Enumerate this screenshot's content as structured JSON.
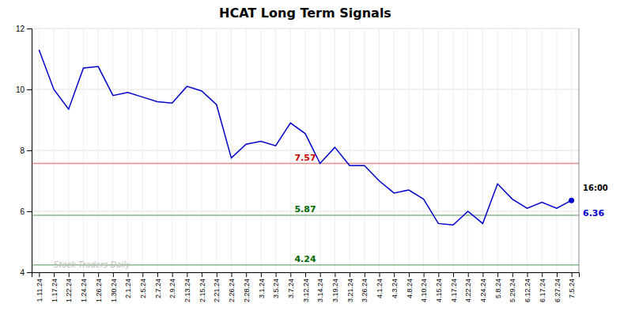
{
  "chart_data": {
    "type": "line",
    "title": "HCAT Long Term Signals",
    "categories": [
      "1.11.24",
      "1.17.24",
      "1.22.24",
      "1.24.24",
      "1.26.24",
      "1.30.24",
      "2.1.24",
      "2.5.24",
      "2.7.24",
      "2.9.24",
      "2.13.24",
      "2.15.24",
      "2.21.24",
      "2.26.24",
      "2.28.24",
      "3.1.24",
      "3.5.24",
      "3.7.24",
      "3.12.24",
      "3.14.24",
      "3.19.24",
      "3.21.24",
      "3.26.24",
      "4.1.24",
      "4.3.24",
      "4.8.24",
      "4.10.24",
      "4.15.24",
      "4.17.24",
      "4.22.24",
      "4.24.24",
      "5.8.24",
      "5.29.24",
      "6.12.24",
      "6.17.24",
      "6.27.24",
      "7.5.24"
    ],
    "values": [
      11.3,
      10.0,
      9.35,
      10.7,
      10.75,
      9.8,
      9.9,
      9.75,
      9.6,
      9.55,
      10.1,
      9.95,
      9.5,
      7.75,
      8.2,
      8.3,
      8.15,
      8.9,
      8.55,
      7.57,
      8.1,
      7.5,
      7.5,
      7.0,
      6.6,
      6.7,
      6.4,
      5.6,
      5.55,
      6.0,
      5.6,
      6.9,
      6.4,
      6.1,
      6.3,
      6.1,
      6.36
    ],
    "color": "#0000cc",
    "reference_lines": [
      {
        "value": 7.57,
        "label": "7.57",
        "color": "#cc0000"
      },
      {
        "value": 5.87,
        "label": "5.87",
        "color": "#006600"
      },
      {
        "value": 4.24,
        "label": "4.24",
        "color": "#006600"
      }
    ],
    "annotations": [
      {
        "text": "Stock Traders Daily",
        "color": "#bbbbbb"
      },
      {
        "text": "16:00"
      },
      {
        "text": "6.36",
        "color": "#0000cc"
      }
    ],
    "ylim": [
      4.0,
      12.0
    ],
    "yticks": [
      4,
      6,
      8,
      10,
      12
    ],
    "grid": true
  }
}
